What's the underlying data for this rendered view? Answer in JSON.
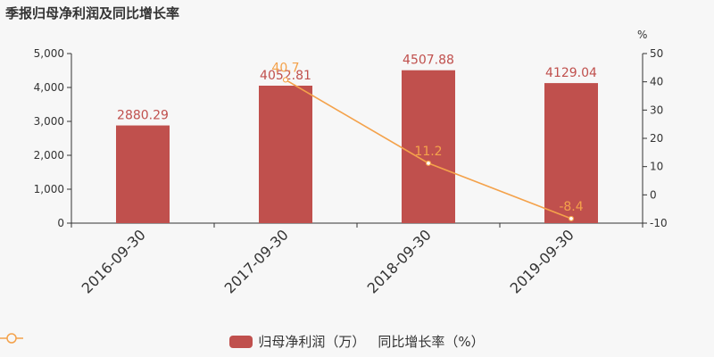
{
  "title": "季报归母净利润及同比增长率",
  "colors": {
    "bar": "#c0504d",
    "line": "#f4a24b",
    "axis": "#333333",
    "text": "#333333"
  },
  "chart_data": {
    "type": "bar",
    "categories": [
      "2016-09-30",
      "2017-09-30",
      "2018-09-30",
      "2019-09-30"
    ],
    "series": [
      {
        "name": "归母净利润（万）",
        "type": "bar",
        "axis": "left",
        "values": [
          2880.29,
          4052.81,
          4507.88,
          4129.04
        ],
        "labels": [
          "2880.29",
          "4052.81",
          "4507.88",
          "4129.04"
        ]
      },
      {
        "name": "同比增长率（%）",
        "type": "line",
        "axis": "right",
        "values": [
          null,
          40.7,
          11.2,
          -8.4
        ],
        "labels": [
          "",
          "40.7",
          "11.2",
          "-8.4"
        ]
      }
    ],
    "y_left": {
      "min": 0,
      "max": 5000,
      "ticks": [
        0,
        1000,
        2000,
        3000,
        4000,
        5000
      ],
      "tick_labels": [
        "0",
        "1,000",
        "2,000",
        "3,000",
        "4,000",
        "5,000"
      ]
    },
    "y_right": {
      "unit": "%",
      "min": -10,
      "max": 50,
      "ticks": [
        -10,
        0,
        10,
        20,
        30,
        40,
        50
      ],
      "tick_labels": [
        "-10",
        "0",
        "10",
        "20",
        "30",
        "40",
        "50"
      ]
    },
    "grid": false,
    "legend_position": "bottom"
  }
}
